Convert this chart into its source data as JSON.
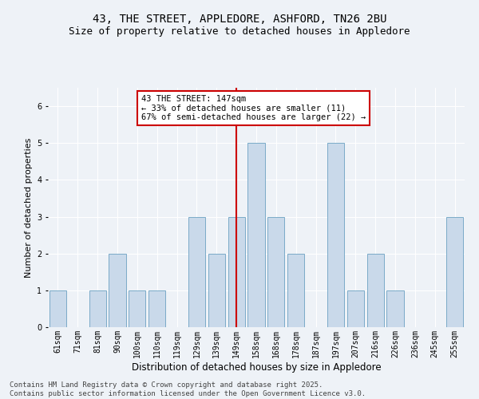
{
  "title": "43, THE STREET, APPLEDORE, ASHFORD, TN26 2BU",
  "subtitle": "Size of property relative to detached houses in Appledore",
  "xlabel": "Distribution of detached houses by size in Appledore",
  "ylabel": "Number of detached properties",
  "categories": [
    "61sqm",
    "71sqm",
    "81sqm",
    "90sqm",
    "100sqm",
    "110sqm",
    "119sqm",
    "129sqm",
    "139sqm",
    "149sqm",
    "158sqm",
    "168sqm",
    "178sqm",
    "187sqm",
    "197sqm",
    "207sqm",
    "216sqm",
    "226sqm",
    "236sqm",
    "245sqm",
    "255sqm"
  ],
  "values": [
    1,
    0,
    1,
    2,
    1,
    1,
    0,
    3,
    2,
    3,
    5,
    3,
    2,
    0,
    5,
    1,
    2,
    1,
    0,
    0,
    3
  ],
  "bar_color": "#c9d9ea",
  "bar_edge_color": "#7aaac8",
  "highlight_index": 9,
  "highlight_color": "#cc0000",
  "annotation_text": "43 THE STREET: 147sqm\n← 33% of detached houses are smaller (11)\n67% of semi-detached houses are larger (22) →",
  "annotation_box_color": "#ffffff",
  "annotation_box_edge": "#cc0000",
  "ylim": [
    0,
    6.5
  ],
  "yticks": [
    0,
    1,
    2,
    3,
    4,
    5,
    6
  ],
  "footer": "Contains HM Land Registry data © Crown copyright and database right 2025.\nContains public sector information licensed under the Open Government Licence v3.0.",
  "bg_color": "#eef2f7",
  "plot_bg_color": "#eef2f7",
  "title_fontsize": 10,
  "subtitle_fontsize": 9,
  "xlabel_fontsize": 8.5,
  "ylabel_fontsize": 8,
  "tick_fontsize": 7,
  "footer_fontsize": 6.5,
  "ann_fontsize": 7.5
}
